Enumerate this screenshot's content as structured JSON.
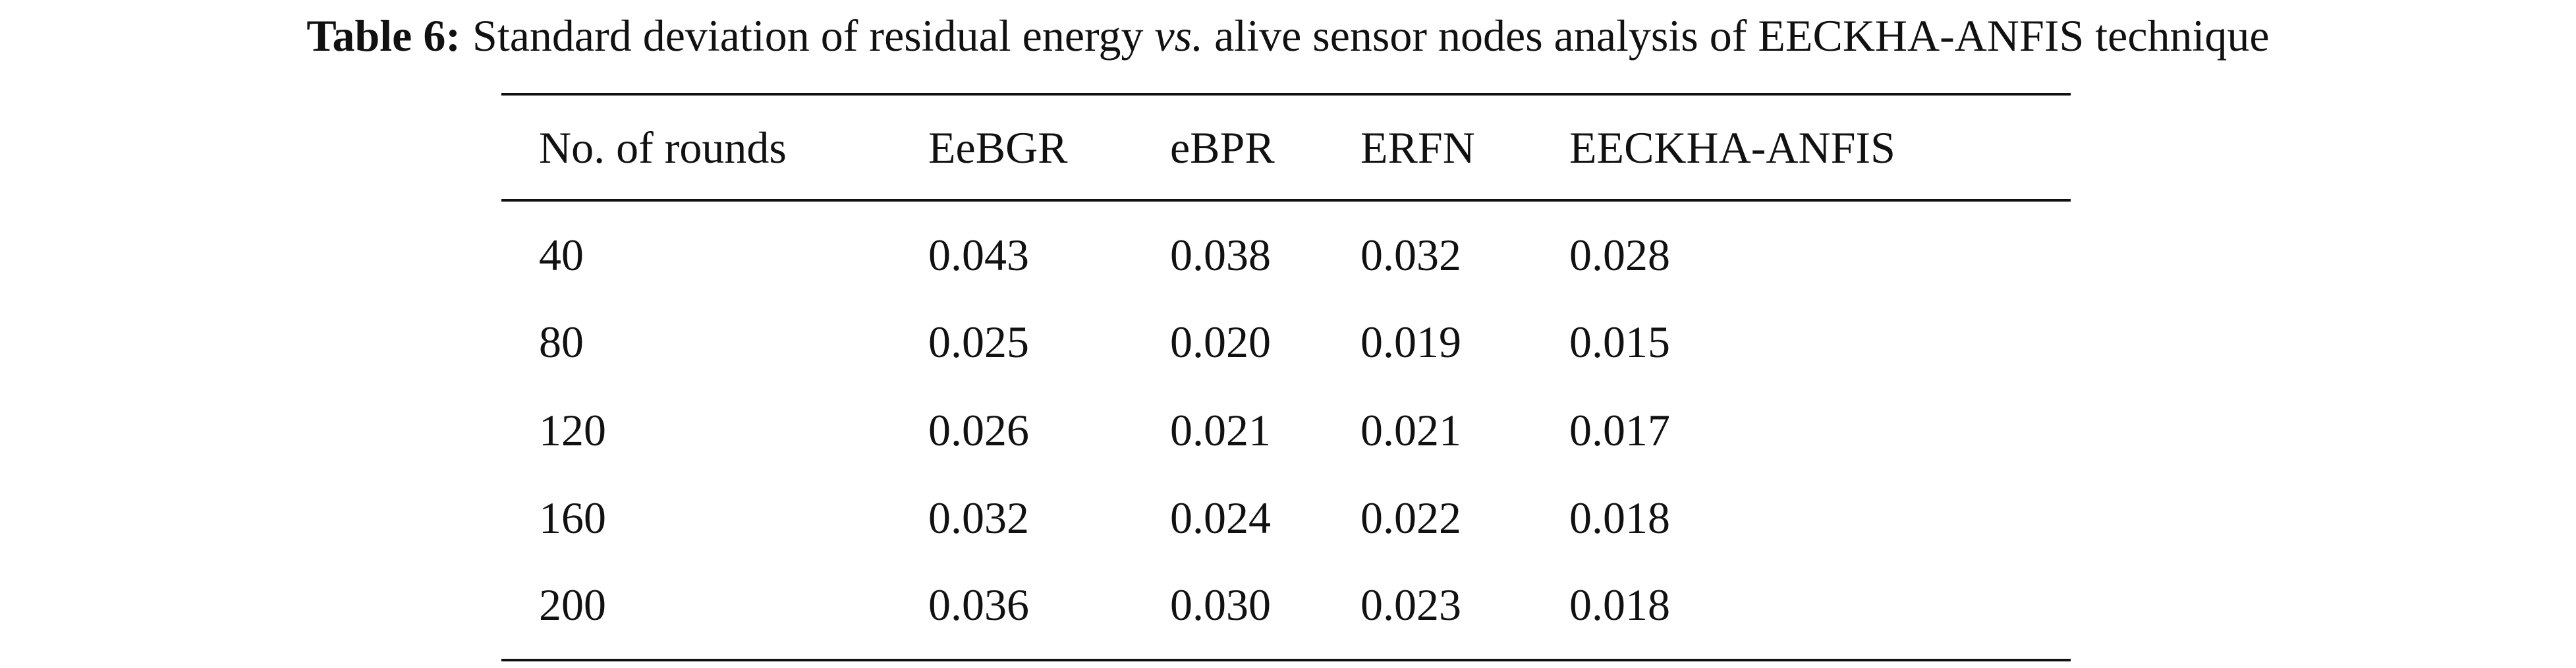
{
  "caption": {
    "label": "Table 6:",
    "text_before": "Standard deviation of residual energy",
    "text_italic": "vs.",
    "text_after": "alive sensor nodes analysis of EECKHA-ANFIS technique"
  },
  "table": {
    "header": [
      "No. of rounds",
      "EeBGR",
      "eBPR",
      "ERFN",
      "EECKHA-ANFIS"
    ],
    "rows": [
      [
        "40",
        "0.043",
        "0.038",
        "0.032",
        "0.028"
      ],
      [
        "80",
        "0.025",
        "0.020",
        "0.019",
        "0.015"
      ],
      [
        "120",
        "0.026",
        "0.021",
        "0.021",
        "0.017"
      ],
      [
        "160",
        "0.032",
        "0.024",
        "0.022",
        "0.018"
      ],
      [
        "200",
        "0.036",
        "0.030",
        "0.023",
        "0.018"
      ]
    ]
  }
}
